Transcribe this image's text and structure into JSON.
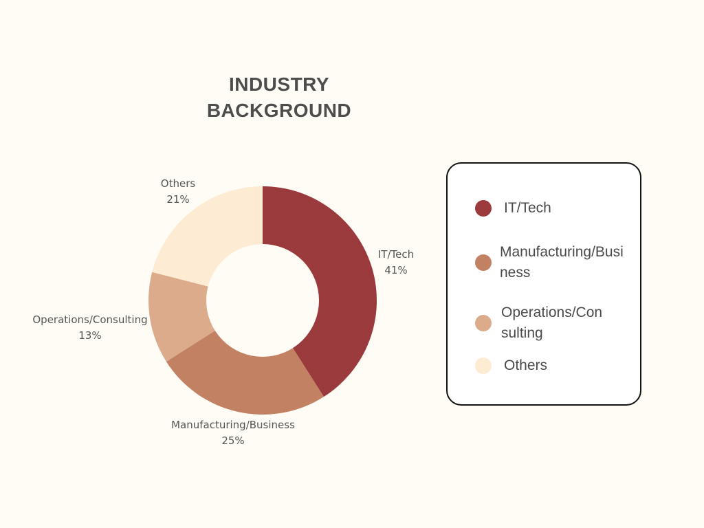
{
  "title": {
    "line1": "INDUSTRY",
    "line2": "BACKGROUND"
  },
  "chart_data": {
    "type": "pie",
    "subtype": "donut",
    "title": "INDUSTRY BACKGROUND",
    "categories": [
      "IT/Tech",
      "Manufacturing/Business",
      "Operations/Consulting",
      "Others"
    ],
    "values": [
      41,
      25,
      13,
      21
    ],
    "unit": "%",
    "colors": [
      "#9b3a3c",
      "#c28163",
      "#dbab8c",
      "#fdebd3"
    ],
    "legend_position": "right",
    "start_angle": "12 o'clock, clockwise"
  },
  "slice_labels": [
    {
      "name": "IT/Tech",
      "pct": "41%"
    },
    {
      "name": "Manufacturing/Business",
      "pct": "25%"
    },
    {
      "name": "Operations/Consulting",
      "pct": "13%"
    },
    {
      "name": "Others",
      "pct": "21%"
    }
  ],
  "legend": {
    "items": [
      {
        "label": "IT/Tech",
        "color": "#9b3a3c"
      },
      {
        "label": "Manufacturing/Business",
        "color": "#c28163"
      },
      {
        "label": "Operations/Consulting",
        "color": "#dbab8c"
      },
      {
        "label": "Others",
        "color": "#fdebd3"
      }
    ]
  },
  "colors": {
    "background": "#fffcf5",
    "text": "#4d4d4d",
    "hole": "#fffcf5"
  }
}
